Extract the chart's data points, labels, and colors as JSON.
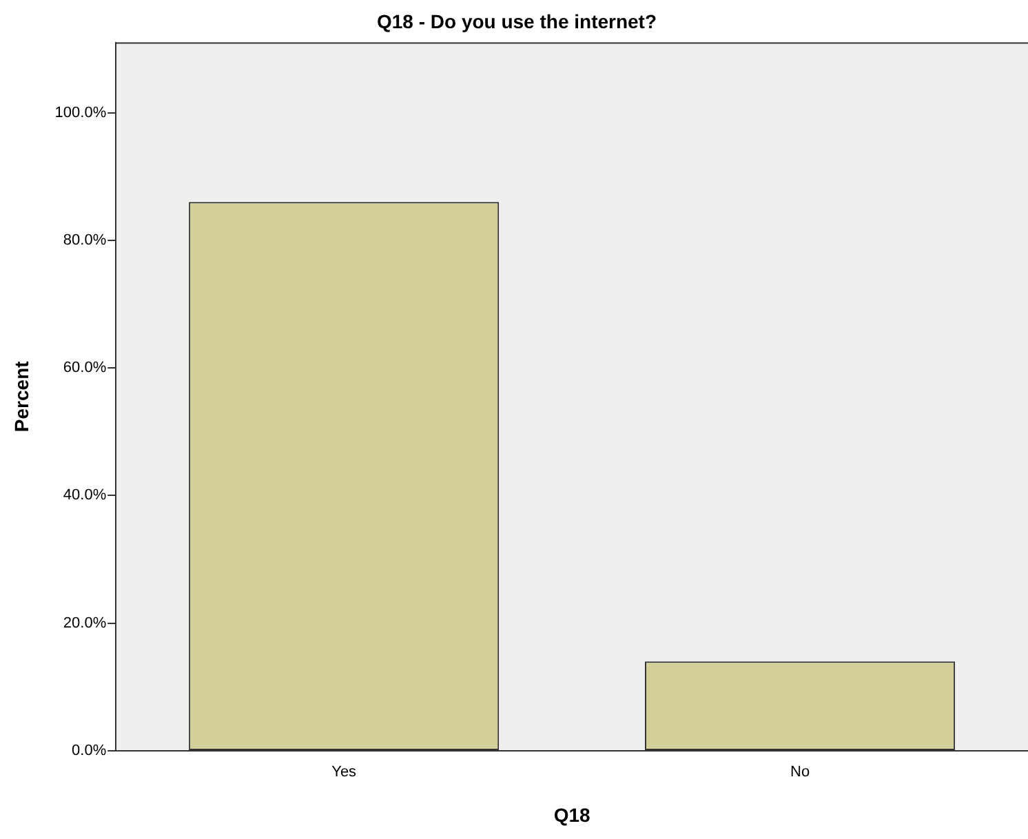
{
  "chart_data": {
    "type": "bar",
    "title": "Q18 - Do you use the internet?",
    "xlabel": "Q18",
    "ylabel": "Percent",
    "categories": [
      "Yes",
      "No"
    ],
    "values": [
      86.0,
      14.0
    ],
    "color": "#d3cf98",
    "ylim": [
      0,
      111
    ],
    "yticks": [
      {
        "value": 0,
        "label": "0.0%"
      },
      {
        "value": 20,
        "label": "20.0%"
      },
      {
        "value": 40,
        "label": "40.0%"
      },
      {
        "value": 60,
        "label": "60.0%"
      },
      {
        "value": 80,
        "label": "80.0%"
      },
      {
        "value": 100,
        "label": "100.0%"
      }
    ],
    "grid": false,
    "legend": false
  }
}
